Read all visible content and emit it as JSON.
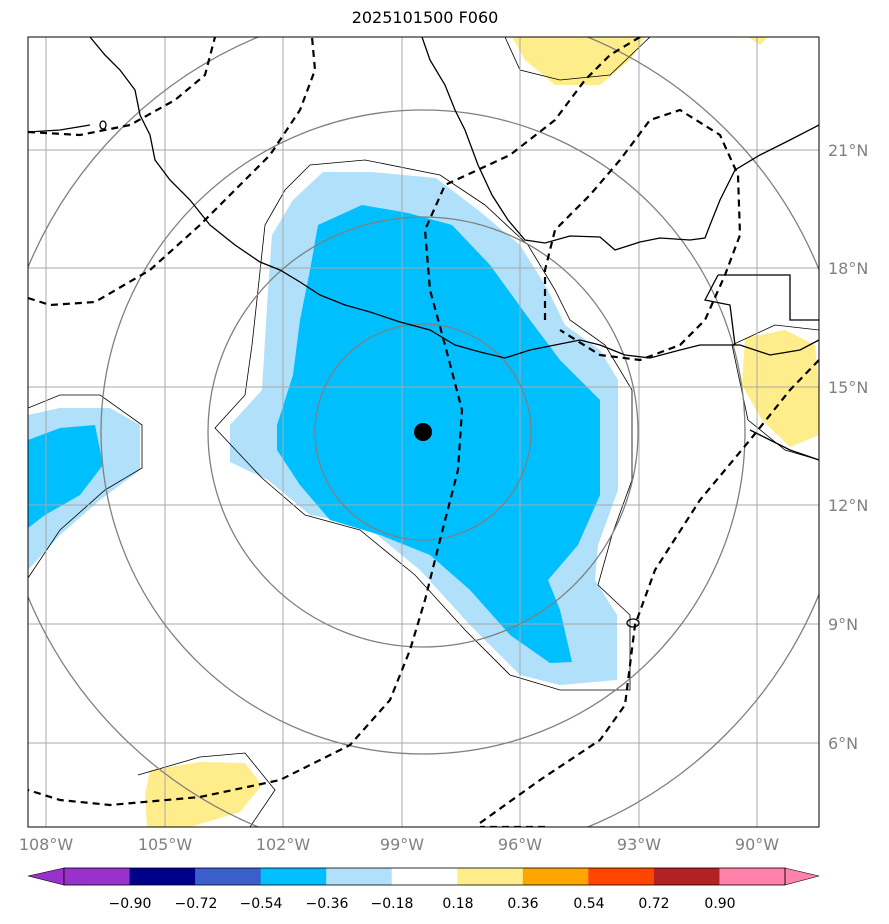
{
  "title": "2025101500 F060",
  "map": {
    "lon_ticks": [
      "108°W",
      "105°W",
      "102°W",
      "99°W",
      "96°W",
      "93°W",
      "90°W"
    ],
    "lat_ticks": [
      "21°N",
      "18°N",
      "15°N",
      "12°N",
      "9°N",
      "6°N"
    ],
    "lon_range": [
      -108.5,
      -88.5
    ],
    "lat_range": [
      4.0,
      23.5
    ],
    "center_marker": {
      "lon": -98.5,
      "lat": 13.8
    }
  },
  "colorbar": {
    "labels": [
      "−0.90",
      "−0.72",
      "−0.54",
      "−0.36",
      "−0.18",
      "0.18",
      "0.36",
      "0.54",
      "0.72",
      "0.90"
    ],
    "colors": [
      "#9932cc",
      "#00008b",
      "#3a5fcd",
      "#00bfff",
      "#b0e0fa",
      "#ffffff",
      "#ffec8b",
      "#ffa500",
      "#ff4500",
      "#b22222",
      "#ff82ab",
      "#ff82ab"
    ]
  }
}
